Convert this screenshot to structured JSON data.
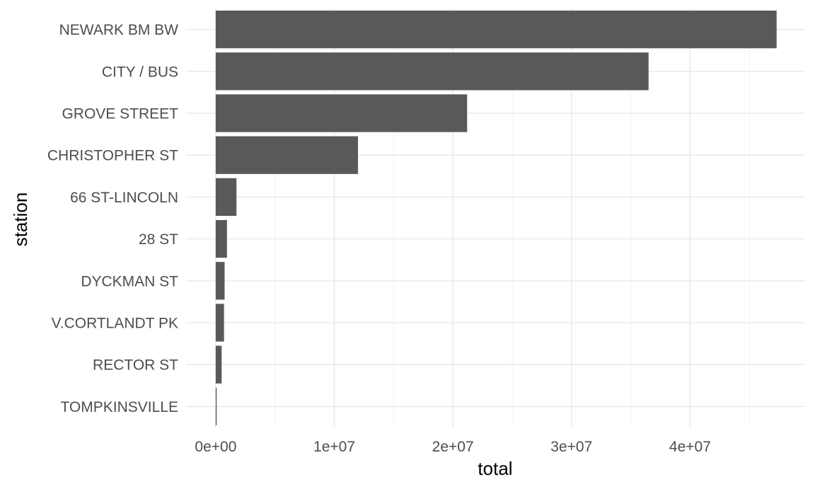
{
  "chart_data": {
    "type": "bar",
    "orientation": "horizontal",
    "title": "",
    "xlabel": "total",
    "ylabel": "station",
    "categories": [
      "NEWARK BM BW",
      "CITY / BUS",
      "GROVE STREET",
      "CHRISTOPHER ST",
      "66 ST-LINCOLN",
      "28 ST",
      "DYCKMAN ST",
      "V.CORTLANDT PK",
      "RECTOR ST",
      "TOMPKINSVILLE"
    ],
    "values": [
      47300000,
      36500000,
      21200000,
      12000000,
      1750000,
      950000,
      750000,
      700000,
      500000,
      80000
    ],
    "xlim": [
      -2500000,
      49700000
    ],
    "x_ticks": [
      0,
      10000000,
      20000000,
      30000000,
      40000000
    ],
    "x_tick_labels": [
      "0e+00",
      "1e+07",
      "2e+07",
      "3e+07",
      "4e+07"
    ],
    "grid": true,
    "legend": "none",
    "colors": {
      "bar": "#595959",
      "grid_major": "#ebebeb",
      "grid_minor": "#f2f2f2",
      "background": "#ffffff"
    }
  }
}
